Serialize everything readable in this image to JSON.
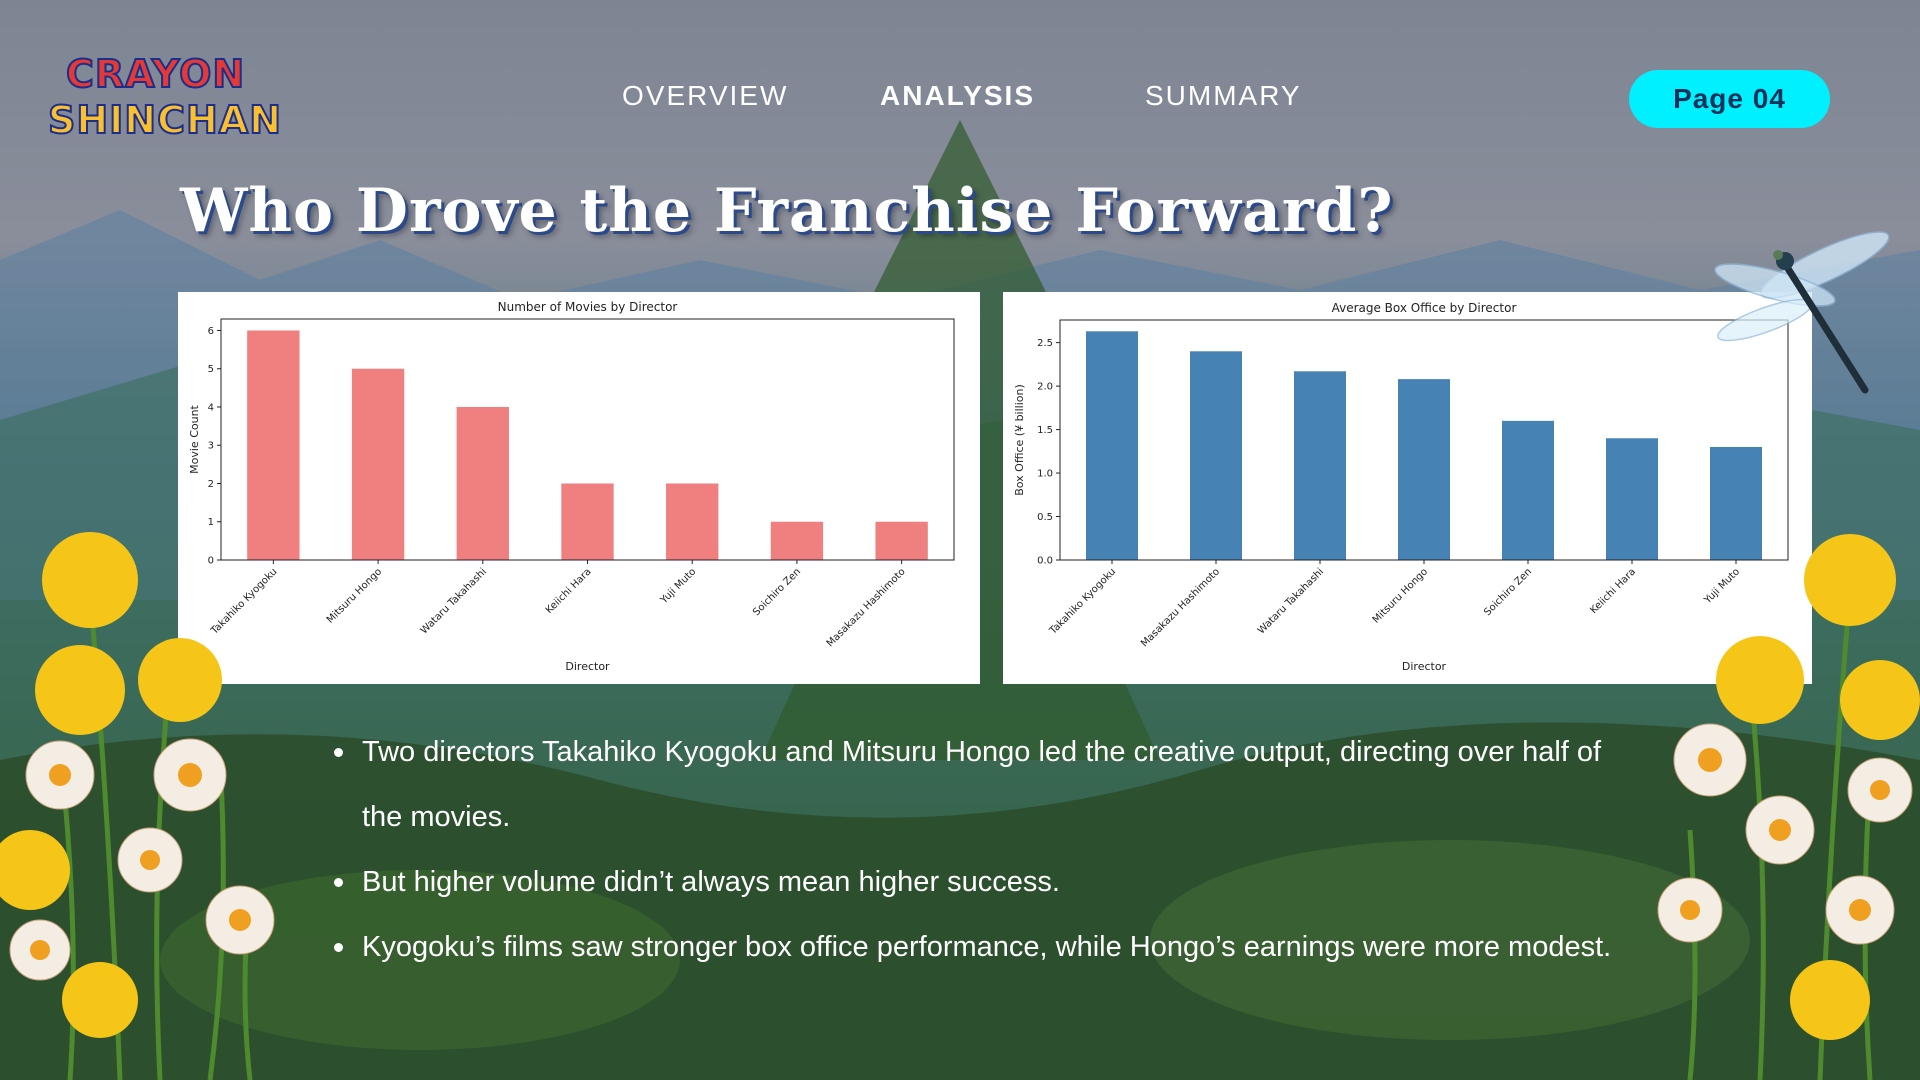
{
  "logo": {
    "line1": "CRAYON",
    "line2": "SHINCHAN"
  },
  "nav": {
    "items": [
      {
        "label": "OVERVIEW",
        "active": false
      },
      {
        "label": "ANALYSIS",
        "active": true
      },
      {
        "label": "SUMMARY",
        "active": false
      }
    ]
  },
  "page_badge": "Page 04",
  "title": "Who Drove the Franchise Forward?",
  "bullets": [
    "Two directors Takahiko Kyogoku and Mitsuru Hongo led the creative output, directing over half of the movies.",
    "But higher volume didn’t always mean higher success.",
    "Kyogoku’s films saw stronger box office performance, while Hongo’s earnings were more modest."
  ],
  "colors": {
    "accent": "#00f0ff",
    "bar_left": "#f08080",
    "bar_right": "#4682b4"
  },
  "icons": [
    "dragonfly-icon",
    "flowers-left",
    "flowers-right"
  ],
  "chart_data": [
    {
      "type": "bar",
      "title": "Number of Movies by Director",
      "xlabel": "Director",
      "ylabel": "Movie Count",
      "categories": [
        "Takahiko Kyogoku",
        "Mitsuru Hongo",
        "Wataru Takahashi",
        "Keiichi Hara",
        "Yuji Muto",
        "Soichiro Zen",
        "Masakazu Hashimoto"
      ],
      "values": [
        6,
        5,
        4,
        2,
        2,
        1,
        1
      ],
      "ylim": [
        0,
        6.3
      ],
      "yticks": [
        0,
        1,
        2,
        3,
        4,
        5,
        6
      ],
      "ytick_labels": [
        "0",
        "1",
        "2",
        "3",
        "4",
        "5",
        "6"
      ],
      "color": "#f08080",
      "grid": false,
      "legend": "none"
    },
    {
      "type": "bar",
      "title": "Average Box Office by Director",
      "xlabel": "Director",
      "ylabel": "Box Office (¥ billion)",
      "categories": [
        "Takahiko Kyogoku",
        "Masakazu Hashimoto",
        "Wataru Takahashi",
        "Mitsuru Hongo",
        "Soichiro Zen",
        "Keiichi Hara",
        "Yuji Muto"
      ],
      "values": [
        2.63,
        2.4,
        2.17,
        2.08,
        1.6,
        1.4,
        1.3
      ],
      "ylim": [
        0,
        2.76
      ],
      "yticks": [
        0,
        0.5,
        1,
        1.5,
        2,
        2.5
      ],
      "ytick_labels": [
        "0.0",
        "0.5",
        "1.0",
        "1.5",
        "2.0",
        "2.5"
      ],
      "color": "#4682b4",
      "grid": false,
      "legend": "none"
    }
  ]
}
